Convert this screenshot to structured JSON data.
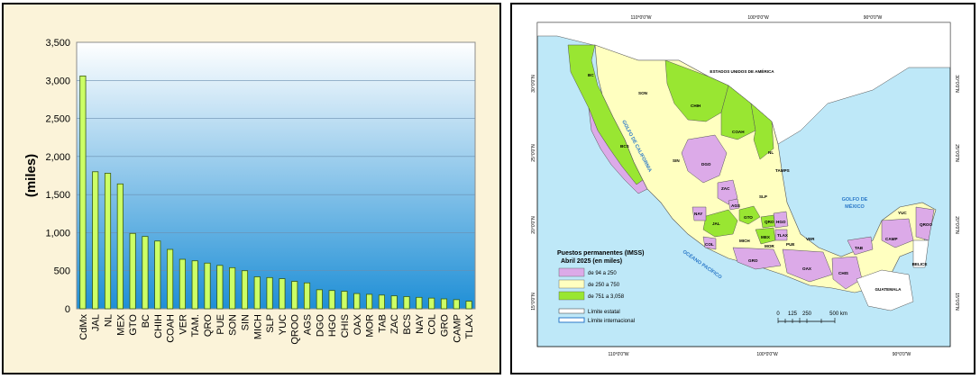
{
  "chart_data": {
    "type": "bar",
    "ylabel": "(miles)",
    "ylim": [
      0,
      3500
    ],
    "yticks": [
      "0",
      "500",
      "1,000",
      "1,500",
      "2,000",
      "2,500",
      "3,000",
      "3,500"
    ],
    "ytick_values": [
      0,
      500,
      1000,
      1500,
      2000,
      2500,
      3000,
      3500
    ],
    "grid": true,
    "categories": [
      "CdMx",
      "JAL",
      "NL",
      "MEX",
      "GTO",
      "BC",
      "CHIH",
      "COAH",
      "VER",
      "TAM.",
      "QRO",
      "PUE",
      "SON",
      "SIN",
      "MICH",
      "SLP",
      "YUC",
      "QROO",
      "AGS",
      "DGO",
      "HGO",
      "CHIS",
      "OAX",
      "MOR",
      "TAB",
      "ZAC",
      "BCS",
      "NAY",
      "COL",
      "GRO",
      "CAMP",
      "TLAX"
    ],
    "values": [
      3058,
      1800,
      1780,
      1640,
      990,
      950,
      890,
      780,
      650,
      630,
      600,
      570,
      540,
      500,
      420,
      410,
      395,
      360,
      340,
      250,
      240,
      230,
      200,
      190,
      180,
      170,
      160,
      150,
      140,
      130,
      120,
      100
    ],
    "colors": {
      "bar": "#ccff66",
      "bar_edge": "#3a5a10",
      "plot_top": "#ffffff",
      "plot_bottom": "#1f8fd6"
    }
  },
  "map": {
    "neighbors": {
      "usa": "ESTADOS UNIDOS DE AMÉRICA",
      "guatemala": "GUATEMALA",
      "belize": "BELICE"
    },
    "seas": {
      "gulf_california": "GOLFO DE CALIFORNIA",
      "gulf_mexico_1": "GOLFO DE",
      "gulf_mexico_2": "MÉXICO",
      "pacific": "OCÉANO PACÍFICO"
    },
    "coords_top": [
      "110°0'0\"W",
      "100°0'0\"W",
      "90°0'0\"W"
    ],
    "coords_bottom": [
      "110°0'0\"W",
      "100°0'0\"W",
      "90°0'0\"W"
    ],
    "coords_left": [
      "30°0'0\"N",
      "25°0'0\"N",
      "20°0'0\"N",
      "15°0'0\"N"
    ],
    "coords_right": [
      "30°0'0\"N",
      "25°0'0\"N",
      "20°0'0\"N",
      "15°0'0\"N"
    ],
    "states": {
      "bc": "BC",
      "son": "SON",
      "chih": "CHIH",
      "coah": "COAH",
      "nl": "NL",
      "tamps": "TAMPS",
      "bcs": "BCS",
      "sin": "SIN",
      "dgo": "DGO",
      "zac": "ZAC",
      "slp": "SLP",
      "ags": "AGS",
      "nay": "NAY",
      "jal": "JAL",
      "gto": "GTO",
      "qro": "QRO",
      "hgo": "HGO",
      "mex": "MEX",
      "col": "COL",
      "mich": "MICH",
      "mor": "MOR",
      "tlax": "TLAX",
      "pue": "PUE",
      "ver": "VER",
      "gro": "GRO",
      "oax": "OAX",
      "chis": "CHIS",
      "tab": "TAB",
      "camp": "CAMP",
      "yuc": "YUC",
      "qroo": "QROO"
    },
    "legend": {
      "title_1": "Puestos permanentes (IMSS)",
      "title_2": "Abril 2025 (en miles)",
      "classes": [
        {
          "label": "de 94 a 250",
          "color": "#dcaae8"
        },
        {
          "label": "de 250 a 750",
          "color": "#ffffc0"
        },
        {
          "label": "de 751 a 3,058",
          "color": "#99e632"
        }
      ],
      "state_line": "Límite estatal",
      "intl_line": "Límite internacional"
    },
    "scale": {
      "labels": [
        "0",
        "125",
        "250",
        "500 km"
      ]
    },
    "colors": {
      "sea": "#bee8f8",
      "usa": "#ffffff",
      "low": "#dcaae8",
      "mid": "#ffffc0",
      "high": "#99e632"
    }
  }
}
